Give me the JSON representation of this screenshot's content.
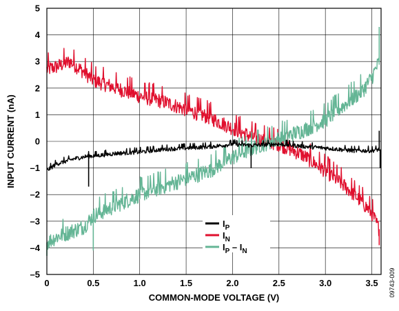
{
  "figure_code": "09743-009",
  "chart_data": {
    "type": "line",
    "xlabel": "COMMON-MODE VOLTAGE (V)",
    "ylabel": "INPUT CURRENT (nA)",
    "xlim": [
      0,
      3.6
    ],
    "ylim": [
      -5,
      5
    ],
    "x_ticks": [
      "0",
      "0.5",
      "1.0",
      "1.5",
      "2.0",
      "2.5",
      "3.0",
      "3.5"
    ],
    "x_tick_values": [
      0,
      0.5,
      1.0,
      1.5,
      2.0,
      2.5,
      3.0,
      3.5
    ],
    "y_ticks": [
      "5",
      "4",
      "3",
      "2",
      "1",
      "0",
      "–1",
      "–2",
      "–3",
      "–4",
      "–5"
    ],
    "y_tick_values": [
      5,
      4,
      3,
      2,
      1,
      0,
      -1,
      -2,
      -3,
      -4,
      -5
    ],
    "grid": true,
    "legend_position": "bottom-right",
    "series": [
      {
        "name": "IP",
        "legend_main": "I",
        "legend_sub": "P",
        "color": "#000000",
        "x": [
          0,
          0.1,
          0.2,
          0.3,
          0.45,
          0.5,
          0.75,
          1.0,
          1.25,
          1.5,
          1.75,
          1.9,
          2.0,
          2.2,
          2.5,
          2.8,
          3.0,
          3.3,
          3.5,
          3.58
        ],
        "values": [
          -1.1,
          -0.85,
          -0.75,
          -0.65,
          -0.55,
          -0.55,
          -0.45,
          -0.4,
          -0.3,
          -0.25,
          -0.2,
          -0.15,
          -0.1,
          -0.15,
          -0.1,
          -0.2,
          -0.25,
          -0.35,
          -0.35,
          -0.3
        ],
        "spikes": [
          [
            0.45,
            -1.7
          ],
          [
            2.2,
            -1.0
          ],
          [
            3.58,
            0.4
          ],
          [
            3.59,
            -1.0
          ]
        ]
      },
      {
        "name": "IN",
        "legend_main": "I",
        "legend_sub": "N",
        "color": "#e0102e",
        "x": [
          0,
          0.1,
          0.25,
          0.4,
          0.5,
          0.75,
          1.0,
          1.25,
          1.5,
          1.75,
          2.0,
          2.25,
          2.5,
          2.75,
          3.0,
          3.25,
          3.4,
          3.5,
          3.58
        ],
        "values": [
          2.7,
          2.8,
          3.0,
          2.6,
          2.3,
          2.0,
          1.7,
          1.5,
          1.2,
          0.9,
          0.5,
          0.1,
          -0.1,
          -0.5,
          -1.1,
          -1.8,
          -2.3,
          -2.7,
          -3.3
        ],
        "spikes": [
          [
            3.58,
            -3.9
          ]
        ]
      },
      {
        "name": "IP – IN",
        "legend_main": "I",
        "legend_sub": "P",
        "legend_mid": " – I",
        "legend_sub2": "N",
        "color": "#64b595",
        "x": [
          0,
          0.1,
          0.25,
          0.4,
          0.5,
          0.75,
          1.0,
          1.25,
          1.5,
          1.75,
          2.0,
          2.25,
          2.5,
          2.75,
          3.0,
          3.25,
          3.4,
          3.5,
          3.58
        ],
        "values": [
          -3.8,
          -3.6,
          -3.4,
          -3.2,
          -2.8,
          -2.4,
          -2.0,
          -1.7,
          -1.4,
          -1.1,
          -0.6,
          -0.2,
          0.1,
          0.4,
          0.8,
          1.5,
          1.9,
          2.4,
          3.0
        ],
        "spikes": [
          [
            3.58,
            4.3
          ],
          [
            0.0,
            -4.3
          ],
          [
            0.5,
            -4.1
          ]
        ]
      }
    ]
  }
}
